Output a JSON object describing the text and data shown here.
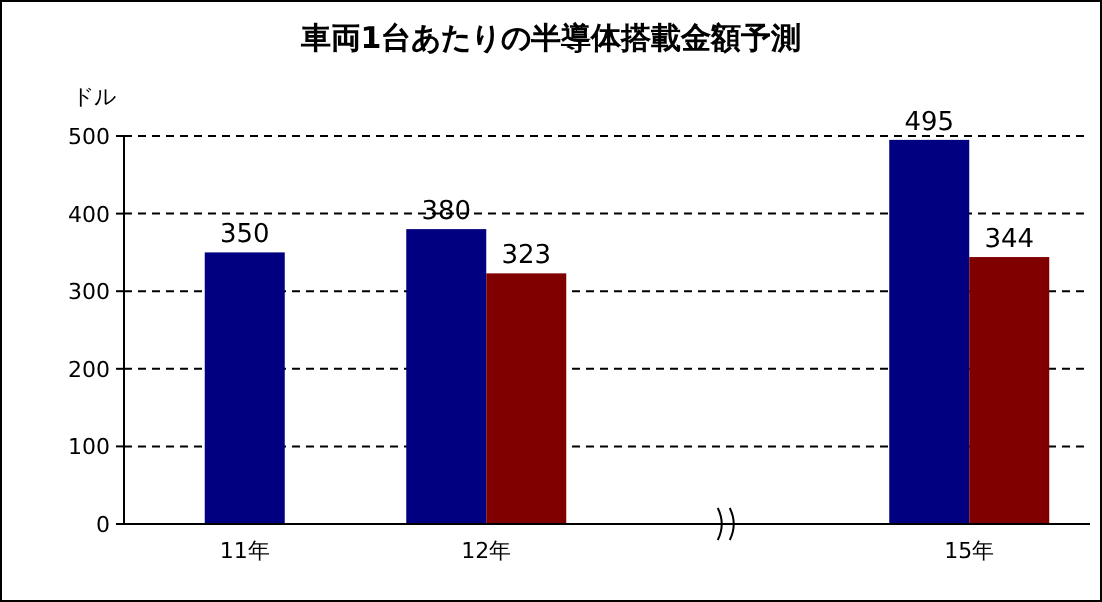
{
  "chart_data": {
    "type": "bar",
    "title": "車両1台あたりの半導体搭載金額予測",
    "ylabel": "ドル",
    "categories": [
      "11年",
      "12年",
      null,
      "15年"
    ],
    "series": [
      {
        "color": "#000080",
        "values": [
          350,
          380,
          null,
          495
        ]
      },
      {
        "color": "#800000",
        "values": [
          null,
          323,
          null,
          344
        ]
      }
    ],
    "ylim": [
      0,
      500
    ],
    "yticks": [
      0,
      100,
      200,
      300,
      400,
      500
    ],
    "grid": "y",
    "data_labels": true
  }
}
